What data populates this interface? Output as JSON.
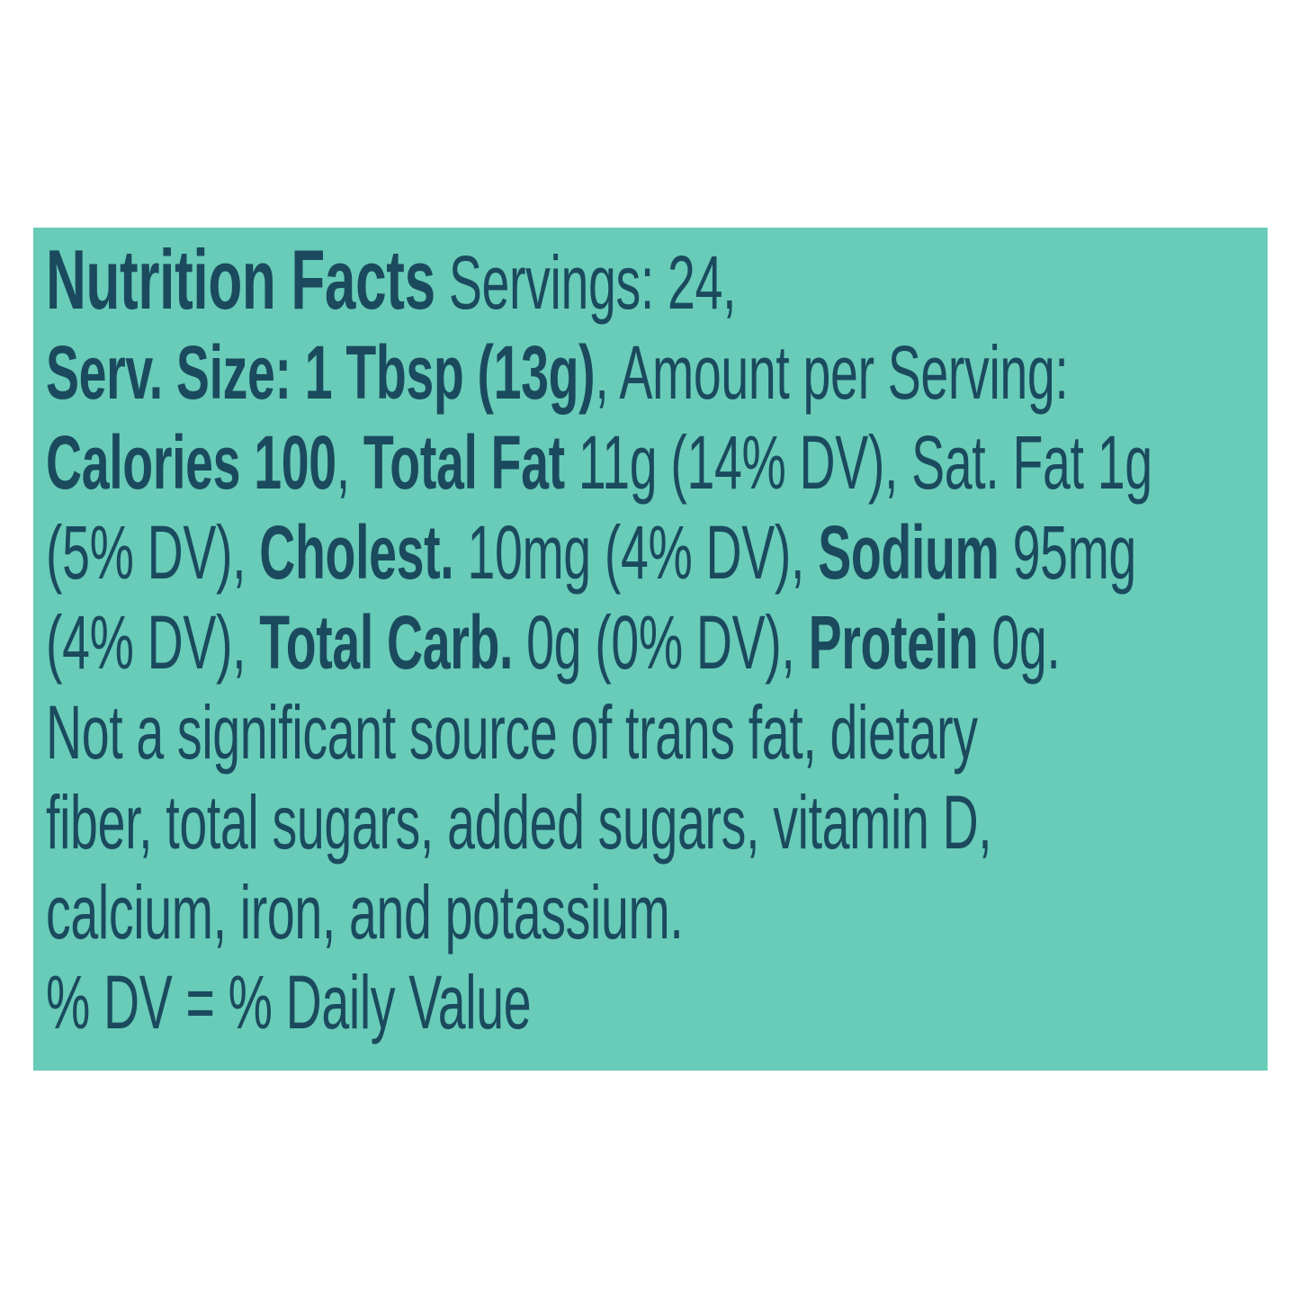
{
  "page": {
    "background_color": "#FFFFFF"
  },
  "panel": {
    "background_color": "#68CCB8",
    "text_color": "#1B4A5E"
  },
  "label": {
    "lines": [
      {
        "segments": [
          {
            "text": "Nutrition Facts",
            "style": "heading-bold"
          },
          {
            "text": " Servings: 24,",
            "style": "regular"
          }
        ]
      },
      {
        "segments": [
          {
            "text": "Serv. Size: 1 Tbsp (13g)",
            "style": "bold"
          },
          {
            "text": ", Amount per Serving:",
            "style": "regular"
          }
        ]
      },
      {
        "segments": [
          {
            "text": "Calories 100",
            "style": "bold"
          },
          {
            "text": ", ",
            "style": "regular"
          },
          {
            "text": "Total Fat",
            "style": "bold"
          },
          {
            "text": " 11g (14% DV), Sat. Fat 1g",
            "style": "regular"
          }
        ]
      },
      {
        "segments": [
          {
            "text": "(5% DV), ",
            "style": "regular"
          },
          {
            "text": "Cholest.",
            "style": "bold"
          },
          {
            "text": " 10mg (4% DV), ",
            "style": "regular"
          },
          {
            "text": "Sodium",
            "style": "bold"
          },
          {
            "text": " 95mg",
            "style": "regular"
          }
        ]
      },
      {
        "segments": [
          {
            "text": "(4% DV), ",
            "style": "regular"
          },
          {
            "text": "Total Carb.",
            "style": "bold"
          },
          {
            "text": " 0g (0% DV), ",
            "style": "regular"
          },
          {
            "text": "Protein",
            "style": "bold"
          },
          {
            "text": " 0g.",
            "style": "regular"
          }
        ]
      },
      {
        "segments": [
          {
            "text": "Not a significant source of trans fat, dietary",
            "style": "regular"
          }
        ]
      },
      {
        "segments": [
          {
            "text": "fiber, total sugars, added sugars, vitamin D,",
            "style": "regular"
          }
        ]
      },
      {
        "segments": [
          {
            "text": "calcium, iron, and potassium.",
            "style": "regular"
          }
        ]
      },
      {
        "segments": [
          {
            "text": "% DV = % Daily Value",
            "style": "regular"
          }
        ]
      }
    ]
  }
}
